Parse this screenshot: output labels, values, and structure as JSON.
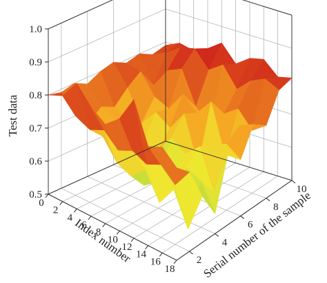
{
  "chart_data": {
    "type": "surface-3d",
    "zlabel": "Test data",
    "xlabel": "Index number",
    "ylabel": "Serial number of the sample",
    "zlim": [
      0.5,
      1.0
    ],
    "xlim": [
      0,
      18
    ],
    "ylim": [
      1,
      10
    ],
    "z_ticks": [
      "0.5",
      "0.6",
      "0.7",
      "0.8",
      "0.9",
      "1.0"
    ],
    "x_ticks": [
      "0",
      "2",
      "4",
      "6",
      "8",
      "10",
      "12",
      "14",
      "16",
      "18"
    ],
    "y_ticks": [
      "2",
      "4",
      "6",
      "8",
      "10"
    ],
    "grid": true,
    "colormap": [
      "#5aa84a",
      "#c4dc3a",
      "#f0e830",
      "#f5a623",
      "#e05a1e",
      "#cc1a1a"
    ],
    "x": [
      0,
      2,
      4,
      6,
      8,
      10,
      12,
      14,
      16,
      18
    ],
    "y": [
      1,
      2,
      3,
      4,
      5,
      6,
      7,
      8,
      9,
      10
    ],
    "z": [
      [
        0.8,
        0.79,
        0.8,
        0.78,
        0.8,
        0.81,
        0.79,
        0.8,
        0.78,
        0.79
      ],
      [
        0.82,
        0.74,
        0.7,
        0.73,
        0.71,
        0.75,
        0.78,
        0.72,
        0.8,
        0.81
      ],
      [
        0.88,
        0.72,
        0.68,
        0.71,
        0.69,
        0.66,
        0.72,
        0.78,
        0.83,
        0.8
      ],
      [
        0.83,
        0.74,
        0.62,
        0.66,
        0.64,
        0.71,
        0.7,
        0.8,
        0.84,
        0.82
      ],
      [
        0.8,
        0.7,
        0.6,
        0.55,
        0.63,
        0.68,
        0.76,
        0.7,
        0.79,
        0.85
      ],
      [
        0.84,
        0.72,
        0.64,
        0.58,
        0.69,
        0.74,
        0.72,
        0.66,
        0.82,
        0.8
      ],
      [
        0.92,
        0.7,
        0.56,
        0.6,
        0.66,
        0.6,
        0.77,
        0.71,
        0.76,
        0.83
      ],
      [
        0.8,
        0.72,
        0.62,
        0.66,
        0.7,
        0.68,
        0.62,
        0.74,
        0.8,
        0.84
      ],
      [
        0.82,
        0.68,
        0.52,
        0.64,
        0.58,
        0.7,
        0.73,
        0.69,
        0.82,
        0.8
      ],
      [
        0.78,
        0.74,
        0.64,
        0.56,
        0.71,
        0.67,
        0.75,
        0.72,
        0.8,
        0.81
      ]
    ]
  }
}
